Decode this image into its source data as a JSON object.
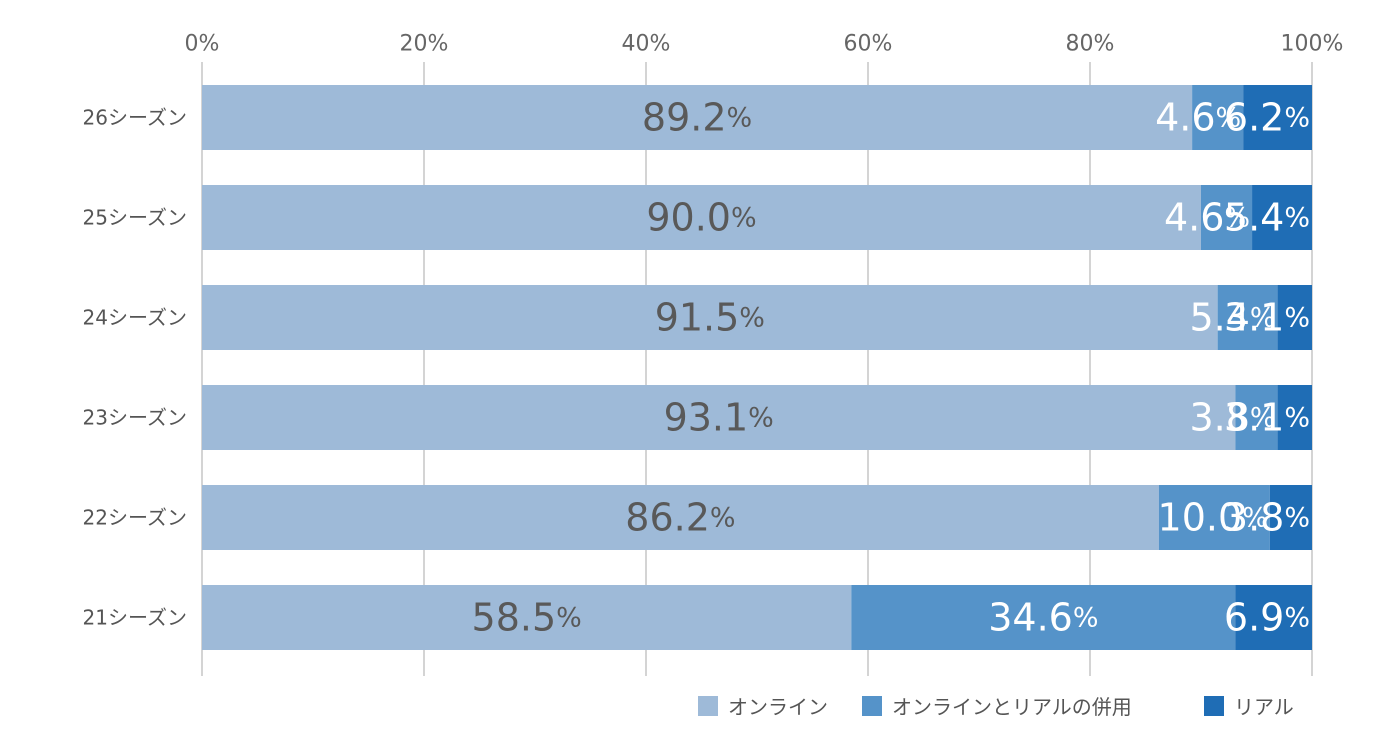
{
  "chart_data": {
    "type": "bar",
    "orientation": "horizontal",
    "stacked": "percent",
    "categories": [
      "26シーズン",
      "25シーズン",
      "24シーズン",
      "23シーズン",
      "22シーズン",
      "21シーズン"
    ],
    "series": [
      {
        "name": "オンライン",
        "color": "#9ebad8",
        "label_color": "#595959",
        "values": [
          89.2,
          90.0,
          91.5,
          93.1,
          86.2,
          58.5
        ],
        "labels": [
          "89.2%",
          "90.0%",
          "91.5%",
          "93.1%",
          "86.2%",
          "58.5%"
        ]
      },
      {
        "name": "オンラインとリアルの併用",
        "color": "#5593c9",
        "label_color": "#ffffff",
        "values": [
          4.6,
          4.6,
          5.4,
          3.8,
          10.0,
          34.6
        ],
        "labels": [
          "4.6%",
          "4.6%",
          "5.4%",
          "3.8%",
          "10.0%",
          "34.6%"
        ]
      },
      {
        "name": "リアル",
        "color": "#1f6db5",
        "label_color": "#ffffff",
        "values": [
          6.2,
          5.4,
          3.1,
          3.1,
          3.8,
          6.9
        ],
        "labels": [
          "6.2%",
          "5.4%",
          "3.1%",
          "3.1%",
          "3.8%",
          "6.9%"
        ]
      }
    ],
    "xlim": [
      0,
      100
    ],
    "x_ticks": [
      "0%",
      "20%",
      "40%",
      "60%",
      "80%",
      "100%"
    ],
    "x_axis_position": "top",
    "grid": true,
    "legend_position": "bottom-right",
    "title": "",
    "xlabel": "",
    "ylabel": ""
  }
}
